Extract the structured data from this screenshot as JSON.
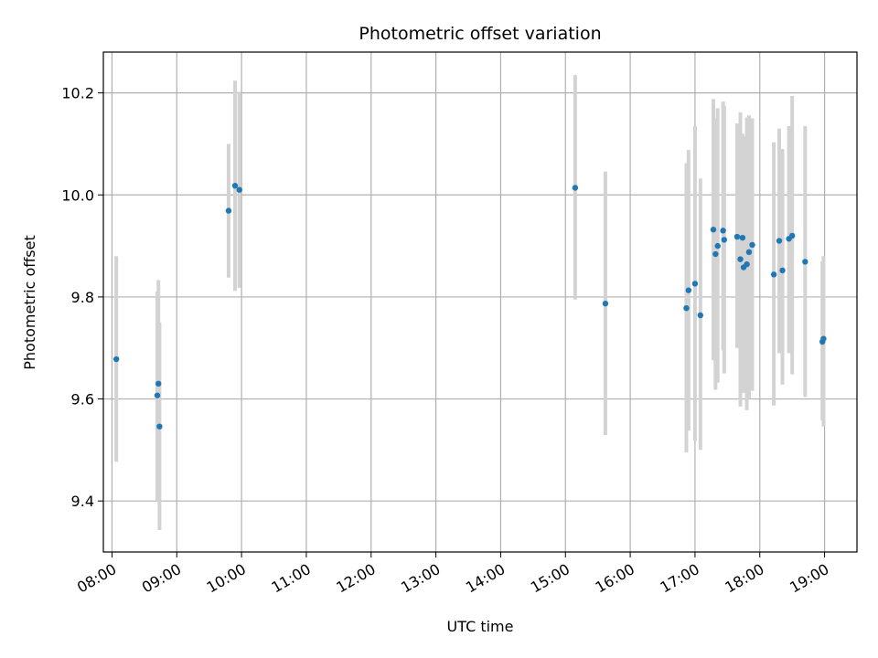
{
  "chart_data": {
    "type": "scatter",
    "title": "Photometric offset variation",
    "xlabel": "UTC time",
    "ylabel": "Photometric offset",
    "x_ticks": [
      "08:00",
      "09:00",
      "10:00",
      "11:00",
      "12:00",
      "13:00",
      "14:00",
      "15:00",
      "16:00",
      "17:00",
      "18:00",
      "19:00"
    ],
    "y_ticks": [
      "9.4",
      "9.6",
      "9.8",
      "10.0",
      "10.2"
    ],
    "xlim": [
      "07:52",
      "19:30"
    ],
    "ylim": [
      9.3,
      10.28
    ],
    "grid": true,
    "colors": {
      "marker": "#1f77b4",
      "errorbar": "#d3d3d3",
      "grid": "#b0b0b0"
    },
    "series": [
      {
        "points": [
          {
            "x": "08:04",
            "y": 9.678,
            "lo": 9.477,
            "hi": 9.88
          },
          {
            "x": "08:42",
            "y": 9.607,
            "lo": 9.4,
            "hi": 9.81
          },
          {
            "x": "08:43",
            "y": 9.63,
            "lo": 9.42,
            "hi": 9.833
          },
          {
            "x": "08:44",
            "y": 9.546,
            "lo": 9.343,
            "hi": 9.75
          },
          {
            "x": "09:48",
            "y": 9.969,
            "lo": 9.838,
            "hi": 10.1
          },
          {
            "x": "09:54",
            "y": 10.018,
            "lo": 9.812,
            "hi": 10.224
          },
          {
            "x": "09:58",
            "y": 10.01,
            "lo": 9.818,
            "hi": 10.202
          },
          {
            "x": "15:09",
            "y": 10.014,
            "lo": 9.795,
            "hi": 10.235
          },
          {
            "x": "15:37",
            "y": 9.787,
            "lo": 9.529,
            "hi": 10.046
          },
          {
            "x": "16:52",
            "y": 9.778,
            "lo": 9.495,
            "hi": 10.062
          },
          {
            "x": "16:54",
            "y": 9.813,
            "lo": 9.538,
            "hi": 10.088
          },
          {
            "x": "17:00",
            "y": 9.826,
            "lo": 9.518,
            "hi": 10.135
          },
          {
            "x": "17:05",
            "y": 9.764,
            "lo": 9.5,
            "hi": 10.032
          },
          {
            "x": "17:17",
            "y": 9.932,
            "lo": 9.676,
            "hi": 10.188
          },
          {
            "x": "17:19",
            "y": 9.884,
            "lo": 9.618,
            "hi": 10.15
          },
          {
            "x": "17:21",
            "y": 9.9,
            "lo": 9.632,
            "hi": 10.17
          },
          {
            "x": "17:26",
            "y": 9.93,
            "lo": 9.695,
            "hi": 10.183
          },
          {
            "x": "17:27",
            "y": 9.912,
            "lo": 9.65,
            "hi": 10.175
          },
          {
            "x": "17:39",
            "y": 9.918,
            "lo": 9.7,
            "hi": 10.14
          },
          {
            "x": "17:42",
            "y": 9.874,
            "lo": 9.585,
            "hi": 10.162
          },
          {
            "x": "17:44",
            "y": 9.916,
            "lo": 9.63,
            "hi": 10.12
          },
          {
            "x": "17:45",
            "y": 9.858,
            "lo": 9.612,
            "hi": 10.115
          },
          {
            "x": "17:48",
            "y": 9.864,
            "lo": 9.578,
            "hi": 10.152
          },
          {
            "x": "17:50",
            "y": 9.888,
            "lo": 9.6,
            "hi": 10.156
          },
          {
            "x": "17:53",
            "y": 9.902,
            "lo": 9.616,
            "hi": 10.15
          },
          {
            "x": "18:13",
            "y": 9.844,
            "lo": 9.587,
            "hi": 10.103
          },
          {
            "x": "18:18",
            "y": 9.91,
            "lo": 9.69,
            "hi": 10.13
          },
          {
            "x": "18:21",
            "y": 9.852,
            "lo": 9.628,
            "hi": 10.09
          },
          {
            "x": "18:27",
            "y": 9.914,
            "lo": 9.69,
            "hi": 10.135
          },
          {
            "x": "18:30",
            "y": 9.92,
            "lo": 9.648,
            "hi": 10.194
          },
          {
            "x": "18:42",
            "y": 9.869,
            "lo": 9.604,
            "hi": 10.135
          },
          {
            "x": "18:58",
            "y": 9.712,
            "lo": 9.558,
            "hi": 9.87
          },
          {
            "x": "18:59",
            "y": 9.718,
            "lo": 9.546,
            "hi": 9.88
          }
        ]
      }
    ]
  }
}
